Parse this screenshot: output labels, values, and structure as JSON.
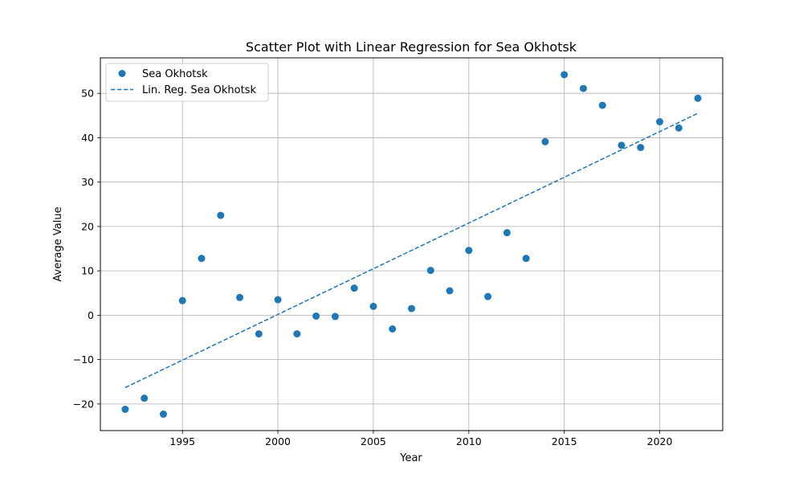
{
  "chart_data": {
    "type": "scatter",
    "title": "Scatter Plot with Linear Regression for Sea Okhotsk",
    "xlabel": "Year",
    "ylabel": "Average Value",
    "xlim": [
      1990.7,
      2023.3
    ],
    "ylim": [
      -26,
      58
    ],
    "xticks": [
      1995,
      2000,
      2005,
      2010,
      2015,
      2020
    ],
    "yticks": [
      -20,
      -10,
      0,
      10,
      20,
      30,
      40,
      50
    ],
    "grid": true,
    "legend_position": "top-left",
    "colors": {
      "series": "#1f77b4"
    },
    "series": [
      {
        "name": "Sea Okhotsk",
        "type": "scatter",
        "x": [
          1992,
          1993,
          1994,
          1995,
          1996,
          1997,
          1998,
          1999,
          2000,
          2001,
          2002,
          2003,
          2004,
          2005,
          2006,
          2007,
          2008,
          2009,
          2010,
          2011,
          2012,
          2013,
          2014,
          2015,
          2016,
          2017,
          2018,
          2019,
          2020,
          2021,
          2022
        ],
        "y": [
          -21.2,
          -18.7,
          -22.3,
          3.3,
          12.8,
          22.5,
          4.0,
          -4.2,
          3.5,
          -4.2,
          -0.2,
          -0.3,
          6.1,
          2.0,
          -3.1,
          1.5,
          10.1,
          5.5,
          14.6,
          4.2,
          18.6,
          12.8,
          39.1,
          54.2,
          51.1,
          47.3,
          38.3,
          37.8,
          43.6,
          42.2,
          48.9
        ]
      },
      {
        "name": "Lin. Reg. Sea Okhotsk",
        "type": "line",
        "style": "dashed",
        "x": [
          1992,
          2022
        ],
        "y": [
          -16.3,
          45.5
        ]
      }
    ]
  }
}
